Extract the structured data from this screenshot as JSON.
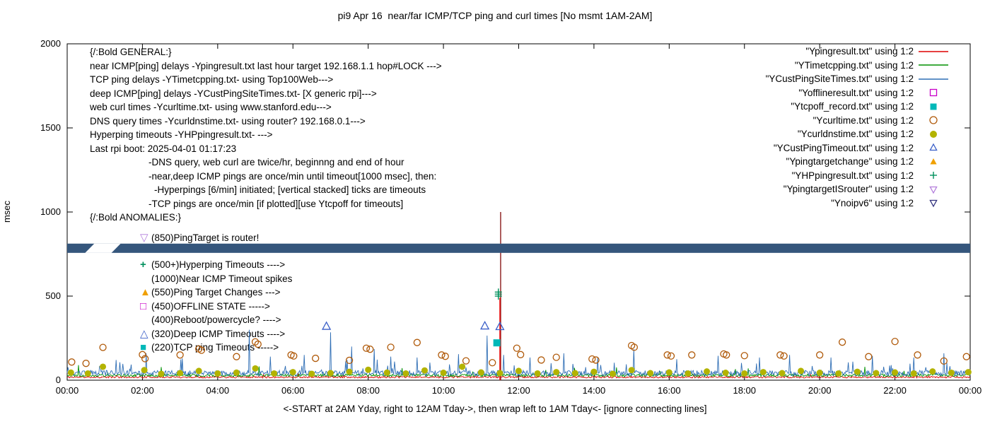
{
  "chart_data": {
    "type": "line",
    "title": "pi9 Apr 16  near/far ICMP/TCP ping and curl times [No msmt 1AM-2AM]",
    "xlabel": "<-START at 2AM Yday, right to 12AM Tday->, then wrap left to 1AM Tday<- [ignore connecting lines]",
    "ylabel": "msec",
    "xlim": [
      0,
      24
    ],
    "ylim": [
      0,
      2000
    ],
    "x_tick_hours": [
      0,
      2,
      4,
      6,
      8,
      10,
      12,
      14,
      16,
      18,
      20,
      22,
      24
    ],
    "x_tick_labels": [
      "00:00",
      "02:00",
      "04:00",
      "06:00",
      "08:00",
      "10:00",
      "12:00",
      "14:00",
      "16:00",
      "18:00",
      "20:00",
      "22:00",
      "00:00"
    ],
    "y_ticks": [
      0,
      500,
      1000,
      1500,
      2000
    ],
    "legend": [
      {
        "label": "\"Ypingresult.txt\" using 1:2",
        "marker": "line",
        "color": "#dd0000"
      },
      {
        "label": "\"YTimetcpping.txt\" using 1:2",
        "marker": "line",
        "color": "#009100"
      },
      {
        "label": "\"YCustPingSiteTimes.txt\" using 1:2",
        "marker": "line",
        "color": "#2f6eb5"
      },
      {
        "label": "\"Yofflineresult.txt\" using 1:2",
        "marker": "square-open",
        "color": "#c800c8"
      },
      {
        "label": "\"Ytcpoff_record.txt\" using 1:2",
        "marker": "square-filled",
        "color": "#00b8b8"
      },
      {
        "label": "\"Ycurltime.txt\" using 1:2",
        "marker": "circle-open",
        "color": "#b05a0a"
      },
      {
        "label": "\"Ycurldnstime.txt\" using 1:2",
        "marker": "circle-filled",
        "color": "#b3b300"
      },
      {
        "label": "\"YCustPingTimeout.txt\" using 1:2",
        "marker": "tri-up-open",
        "color": "#3a5fc8"
      },
      {
        "label": "\"Ypingtargetchange\" using 1:2",
        "marker": "tri-up-filled",
        "color": "#f0a000"
      },
      {
        "label": "\"YHPpingresult.txt\" using 1:2",
        "marker": "plus",
        "color": "#00905c"
      },
      {
        "label": "\"YpingtargetISrouter\" using 1:2",
        "marker": "tri-down-open",
        "color": "#b37edc"
      },
      {
        "label": "\"Ynoipv6\" using 1:2",
        "marker": "tri-down-open",
        "color": "#31317d"
      }
    ],
    "series": [
      {
        "name": "Ypingresult.txt",
        "color": "#dd0000",
        "baseline": 18,
        "noise": 5,
        "seed": 11,
        "spike_prob": 0.01,
        "spike_mag": 22,
        "spikes": []
      },
      {
        "name": "YTimetcpping.txt",
        "color": "#009100",
        "baseline": 29,
        "noise": 8,
        "seed": 22,
        "spike_prob": 0.02,
        "spike_mag": 40,
        "spikes": [
          [
            0.3,
            90
          ],
          [
            2.5,
            78
          ],
          [
            5.1,
            82
          ],
          [
            8.9,
            72
          ],
          [
            14.6,
            76
          ],
          [
            18.1,
            70
          ],
          [
            21.2,
            80
          ]
        ]
      },
      {
        "name": "YCustPingSiteTimes.txt",
        "color": "#2f6eb5",
        "baseline": 42,
        "noise": 16,
        "seed": 33,
        "spike_prob": 0.05,
        "spike_mag": 70,
        "spikes": [
          [
            1.3,
            120
          ],
          [
            2.1,
            160
          ],
          [
            3.05,
            130
          ],
          [
            4.85,
            300
          ],
          [
            5.4,
            140
          ],
          [
            6.3,
            150
          ],
          [
            7.0,
            285
          ],
          [
            7.55,
            200
          ],
          [
            8.15,
            185
          ],
          [
            8.6,
            140
          ],
          [
            9.3,
            135
          ],
          [
            10.4,
            155
          ],
          [
            11.15,
            265
          ],
          [
            11.6,
            150
          ],
          [
            12.3,
            135
          ],
          [
            13.2,
            160
          ],
          [
            14.1,
            135
          ],
          [
            15.05,
            185
          ],
          [
            16.2,
            125
          ],
          [
            17.3,
            145
          ],
          [
            18.4,
            135
          ],
          [
            19.2,
            150
          ],
          [
            20.3,
            135
          ],
          [
            21.4,
            145
          ],
          [
            22.5,
            135
          ],
          [
            23.3,
            160
          ]
        ]
      }
    ],
    "vlines": [
      {
        "x": 11.52,
        "v": 1000,
        "color": "#8b1a1a"
      },
      {
        "x": 11.5,
        "v": 490,
        "color": "#ee1111"
      }
    ],
    "band": {
      "name": "Ynoipv6",
      "v_low": 757,
      "v_high": 812,
      "color": "#35567c",
      "notch_x": [
        0.72,
        1.42
      ]
    },
    "markers": [
      {
        "name": "Ycurltime.txt",
        "shape": "circle-open",
        "color": "#b05a0a",
        "size": 4.5,
        "points": [
          [
            0.12,
            108
          ],
          [
            0.5,
            100
          ],
          [
            0.95,
            195
          ],
          [
            2.0,
            152
          ],
          [
            2.07,
            128
          ],
          [
            3.0,
            150
          ],
          [
            3.5,
            186
          ],
          [
            3.57,
            178
          ],
          [
            4.5,
            140
          ],
          [
            5.0,
            228
          ],
          [
            5.07,
            214
          ],
          [
            5.95,
            150
          ],
          [
            6.02,
            144
          ],
          [
            6.6,
            130
          ],
          [
            7.5,
            118
          ],
          [
            7.95,
            190
          ],
          [
            8.05,
            184
          ],
          [
            8.6,
            196
          ],
          [
            9.3,
            224
          ],
          [
            9.95,
            150
          ],
          [
            10.05,
            142
          ],
          [
            10.6,
            115
          ],
          [
            11.3,
            104
          ],
          [
            11.95,
            190
          ],
          [
            12.05,
            152
          ],
          [
            12.6,
            120
          ],
          [
            13.0,
            136
          ],
          [
            13.95,
            126
          ],
          [
            14.05,
            120
          ],
          [
            15.0,
            206
          ],
          [
            15.07,
            196
          ],
          [
            15.95,
            150
          ],
          [
            16.05,
            144
          ],
          [
            16.6,
            150
          ],
          [
            17.45,
            156
          ],
          [
            17.52,
            150
          ],
          [
            18.0,
            146
          ],
          [
            18.95,
            150
          ],
          [
            19.05,
            144
          ],
          [
            20.0,
            150
          ],
          [
            20.6,
            226
          ],
          [
            21.3,
            140
          ],
          [
            22.0,
            230
          ],
          [
            22.6,
            150
          ],
          [
            23.3,
            114
          ],
          [
            23.9,
            140
          ]
        ]
      },
      {
        "name": "Ycurldnstime.txt",
        "shape": "circle-filled",
        "color": "#b3b300",
        "size": 4.5,
        "points": [
          [
            0.1,
            45
          ],
          [
            0.55,
            40
          ],
          [
            0.95,
            80
          ],
          [
            2.05,
            60
          ],
          [
            2.5,
            38
          ],
          [
            3.0,
            42
          ],
          [
            3.5,
            55
          ],
          [
            4.0,
            40
          ],
          [
            4.5,
            45
          ],
          [
            5.0,
            70
          ],
          [
            5.5,
            40
          ],
          [
            6.0,
            48
          ],
          [
            6.5,
            38
          ],
          [
            7.0,
            42
          ],
          [
            7.5,
            50
          ],
          [
            8.0,
            62
          ],
          [
            8.5,
            45
          ],
          [
            9.0,
            40
          ],
          [
            9.5,
            58
          ],
          [
            10.0,
            44
          ],
          [
            10.5,
            80
          ],
          [
            11.0,
            46
          ],
          [
            11.5,
            42
          ],
          [
            12.0,
            55
          ],
          [
            12.5,
            40
          ],
          [
            13.0,
            48
          ],
          [
            13.5,
            42
          ],
          [
            14.0,
            50
          ],
          [
            14.5,
            38
          ],
          [
            15.0,
            60
          ],
          [
            15.5,
            42
          ],
          [
            16.0,
            46
          ],
          [
            16.5,
            40
          ],
          [
            17.0,
            52
          ],
          [
            17.5,
            44
          ],
          [
            18.0,
            40
          ],
          [
            18.5,
            48
          ],
          [
            19.0,
            42
          ],
          [
            19.5,
            55
          ],
          [
            20.0,
            44
          ],
          [
            20.5,
            40
          ],
          [
            21.0,
            50
          ],
          [
            21.5,
            42
          ],
          [
            22.0,
            46
          ],
          [
            22.5,
            40
          ],
          [
            23.0,
            52
          ],
          [
            23.5,
            44
          ],
          [
            23.95,
            48
          ]
        ]
      },
      {
        "name": "YCustPingTimeout.txt",
        "shape": "tri-up-open",
        "color": "#3a5fc8",
        "size": 6,
        "points": [
          [
            6.89,
            320
          ],
          [
            11.1,
            322
          ],
          [
            11.5,
            318
          ]
        ]
      },
      {
        "name": "Ytcpoff_record.txt",
        "shape": "square-filled",
        "color": "#00b8b8",
        "size": 5,
        "points": [
          [
            11.42,
            222
          ]
        ]
      },
      {
        "name": "YHPpingresult.txt",
        "shape": "plus",
        "color": "#00905c",
        "size": 5,
        "points": [
          [
            11.46,
            500
          ],
          [
            11.46,
            512
          ],
          [
            11.46,
            524
          ]
        ]
      }
    ],
    "annotations": {
      "general_heading": "{/:Bold GENERAL:}",
      "general_lines": [
        "near ICMP[ping] delays -Ypingresult.txt last hour target 192.168.1.1 hop#LOCK --->",
        "TCP ping delays -YTimetcpping.txt- using Top100Web--->",
        "deep ICMP[ping] delays -YCustPingSiteTimes.txt- [X generic rpi]--->",
        "web curl times -Ycurltime.txt- using www.stanford.edu--->",
        "DNS query times -Ycurldnstime.txt- using router? 192.168.0.1--->",
        "Hyperping timeouts -YHPpingresult.txt- --->",
        "Last rpi boot: 2025-04-01 01:17:23"
      ],
      "general_notes": [
        "-DNS query, web curl are twice/hr, beginnng and end of hour",
        "-near,deep ICMP pings are once/min until timeout[1000 msec], then:",
        "-Hyperpings [6/min] initiated; [vertical stacked] ticks are timeouts",
        "-TCP pings are once/min [if plotted][use Ytcpoff for timeouts]"
      ],
      "anomalies_heading": "{/:Bold ANOMALIES:}",
      "anomalies": [
        {
          "marker": "tri-down-open",
          "color": "#b37edc",
          "text": "(850)PingTarget is router!"
        },
        {
          "marker": "plus",
          "color": "#00905c",
          "text": "(500+)Hyperping Timeouts ---->"
        },
        {
          "marker": null,
          "color": null,
          "text": "(1000)Near ICMP Timeout spikes"
        },
        {
          "marker": "tri-up-filled",
          "color": "#f0a000",
          "text": "(550)Ping Target Changes --->"
        },
        {
          "marker": "square-open",
          "color": "#c800c8",
          "text": "(450)OFFLINE STATE ----->"
        },
        {
          "marker": null,
          "color": null,
          "text": "(400)Reboot/powercycle? ---->"
        },
        {
          "marker": "tri-up-open",
          "color": "#3a5fc8",
          "text": "(320)Deep ICMP Timeouts ---->"
        },
        {
          "marker": "square-filled",
          "color": "#00b8b8",
          "text": "(220)TCP ping Timeouts ----->"
        }
      ]
    }
  }
}
